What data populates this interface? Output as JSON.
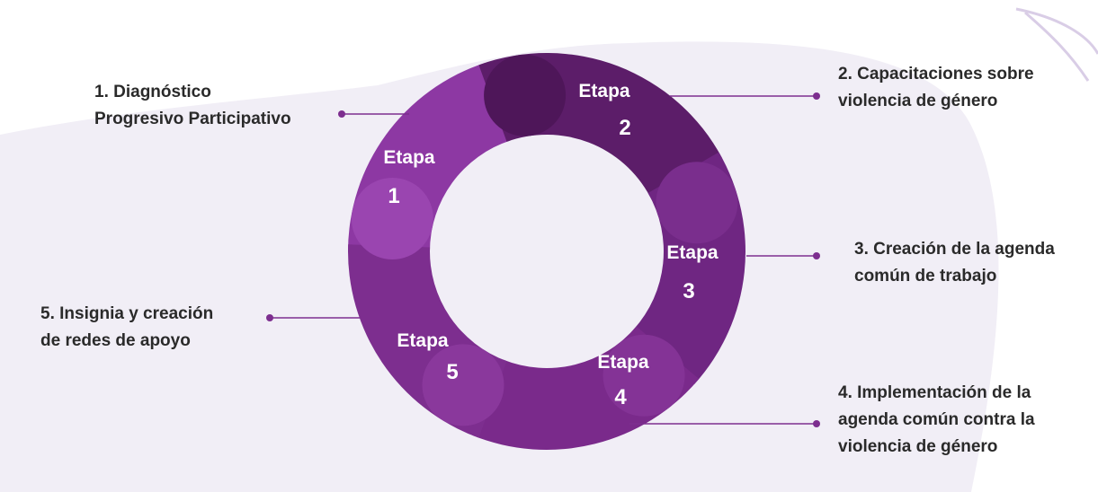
{
  "stages": [
    {
      "etapa": "Etapa",
      "number": "1",
      "description": [
        "1. Diagnóstico",
        "Progresivo Participativo"
      ]
    },
    {
      "etapa": "Etapa",
      "number": "2",
      "description": [
        "2. Capacitaciones sobre",
        "violencia de género"
      ]
    },
    {
      "etapa": "Etapa",
      "number": "3",
      "description": [
        "3. Creación de la agenda",
        "común de trabajo"
      ]
    },
    {
      "etapa": "Etapa",
      "number": "4",
      "description": [
        "4. Implementación de la",
        "agenda común contra la",
        "violencia de género"
      ]
    },
    {
      "etapa": "Etapa",
      "number": "5",
      "description": [
        "5. Insignia y creación",
        "de redes de apoyo"
      ]
    }
  ]
}
